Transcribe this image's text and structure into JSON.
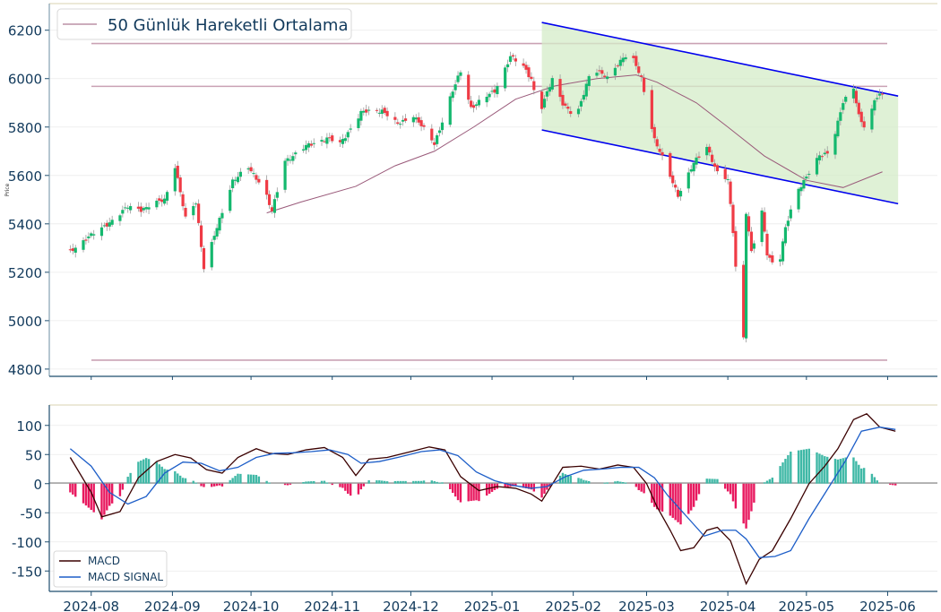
{
  "chart_data": [
    {
      "type": "candlestick",
      "panel": "price",
      "ylabel": "Price",
      "ylim": [
        4770,
        6310
      ],
      "yticks": [
        4800,
        5000,
        5200,
        5400,
        5600,
        5800,
        6000,
        6200
      ],
      "grid": true,
      "legend": {
        "position": "top-left",
        "entries": [
          "50 Günlük Hareketli Ortalama"
        ]
      },
      "colors": {
        "up": "#14b86e",
        "down": "#ef3b45",
        "ma": "#9a5a7a",
        "hline": "#caa2b4",
        "channel": "#0000ee",
        "channel_fill": "#d4ecc8"
      },
      "horizontal_lines": [
        6145,
        5968,
        4837
      ],
      "channel": {
        "upper": {
          "start": [
            "2025-01-20",
            6232
          ],
          "end": [
            "2025-06-05",
            5928
          ]
        },
        "lower": {
          "start": [
            "2025-01-20",
            5788
          ],
          "end": [
            "2025-06-05",
            5483
          ]
        }
      },
      "ma_anchors": [
        [
          "2024-10-07",
          5445
        ],
        [
          "2024-10-20",
          5490
        ],
        [
          "2024-11-10",
          5555
        ],
        [
          "2024-11-25",
          5640
        ],
        [
          "2024-12-10",
          5700
        ],
        [
          "2024-12-25",
          5800
        ],
        [
          "2025-01-10",
          5915
        ],
        [
          "2025-01-25",
          5970
        ],
        [
          "2025-02-10",
          6000
        ],
        [
          "2025-02-25",
          6015
        ],
        [
          "2025-03-05",
          5985
        ],
        [
          "2025-03-20",
          5900
        ],
        [
          "2025-04-01",
          5800
        ],
        [
          "2025-04-15",
          5680
        ],
        [
          "2025-05-01",
          5580
        ],
        [
          "2025-05-15",
          5550
        ],
        [
          "2025-05-30",
          5615
        ]
      ],
      "close_anchors": [
        [
          "2024-07-24",
          5285
        ],
        [
          "2024-07-30",
          5340
        ],
        [
          "2024-08-05",
          5380
        ],
        [
          "2024-08-15",
          5470
        ],
        [
          "2024-08-20",
          5460
        ],
        [
          "2024-08-29",
          5500
        ],
        [
          "2024-09-02",
          5640
        ],
        [
          "2024-09-06",
          5420
        ],
        [
          "2024-09-10",
          5490
        ],
        [
          "2024-09-13",
          5220
        ],
        [
          "2024-09-17",
          5350
        ],
        [
          "2024-09-24",
          5580
        ],
        [
          "2024-09-30",
          5630
        ],
        [
          "2024-10-06",
          5550
        ],
        [
          "2024-10-09",
          5450
        ],
        [
          "2024-10-14",
          5660
        ],
        [
          "2024-10-22",
          5720
        ],
        [
          "2024-10-30",
          5755
        ],
        [
          "2024-11-04",
          5730
        ],
        [
          "2024-11-12",
          5860
        ],
        [
          "2024-11-20",
          5870
        ],
        [
          "2024-11-26",
          5810
        ],
        [
          "2024-12-02",
          5850
        ],
        [
          "2024-12-10",
          5730
        ],
        [
          "2024-12-16",
          5920
        ],
        [
          "2024-12-20",
          6030
        ],
        [
          "2024-12-24",
          5880
        ],
        [
          "2025-01-02",
          5950
        ],
        [
          "2025-01-08",
          6090
        ],
        [
          "2025-01-13",
          6050
        ],
        [
          "2025-01-16",
          6000
        ],
        [
          "2025-01-19",
          5850
        ],
        [
          "2025-01-24",
          6000
        ],
        [
          "2025-01-28",
          5900
        ],
        [
          "2025-02-02",
          5830
        ],
        [
          "2025-02-08",
          6050
        ],
        [
          "2025-02-14",
          6000
        ],
        [
          "2025-02-20",
          6090
        ],
        [
          "2025-02-23",
          6100
        ],
        [
          "2025-02-27",
          6000
        ],
        [
          "2025-03-04",
          5750
        ],
        [
          "2025-03-09",
          5620
        ],
        [
          "2025-03-13",
          5520
        ],
        [
          "2025-03-19",
          5650
        ],
        [
          "2025-03-24",
          5720
        ],
        [
          "2025-03-28",
          5610
        ],
        [
          "2025-04-01",
          5580
        ],
        [
          "2025-04-03",
          5370
        ],
        [
          "2025-04-05",
          5080
        ],
        [
          "2025-04-07",
          4930
        ],
        [
          "2025-04-08",
          5450
        ],
        [
          "2025-04-10",
          5280
        ],
        [
          "2025-04-14",
          5450
        ],
        [
          "2025-04-16",
          5280
        ],
        [
          "2025-04-20",
          5200
        ],
        [
          "2025-04-23",
          5380
        ],
        [
          "2025-04-27",
          5530
        ],
        [
          "2025-05-02",
          5610
        ],
        [
          "2025-05-06",
          5680
        ],
        [
          "2025-05-10",
          5700
        ],
        [
          "2025-05-15",
          5900
        ],
        [
          "2025-05-19",
          5960
        ],
        [
          "2025-05-21",
          5850
        ],
        [
          "2025-05-24",
          5780
        ],
        [
          "2025-05-27",
          5910
        ],
        [
          "2025-05-31",
          5950
        ]
      ]
    },
    {
      "type": "bar+line",
      "panel": "macd",
      "ylim": [
        -185,
        135
      ],
      "yticks": [
        100,
        50,
        0,
        -50,
        -100,
        -150
      ],
      "xticks": [
        "2024-08",
        "2024-09",
        "2024-10",
        "2024-11",
        "2024-12",
        "2025-01",
        "2025-02",
        "2025-03",
        "2025-04",
        "2025-05",
        "2025-06"
      ],
      "grid": true,
      "legend": {
        "position": "bottom-left",
        "entries": [
          "MACD",
          "MACD SIGNAL"
        ]
      },
      "colors": {
        "macd": "#3a0000",
        "signal": "#1d5ec8",
        "hist_pos": "#3fb8a6",
        "hist_neg": "#e8195f"
      },
      "series": [
        {
          "name": "MACD",
          "anchors": [
            [
              "2024-07-24",
              45
            ],
            [
              "2024-08-01",
              -15
            ],
            [
              "2024-08-05",
              -57
            ],
            [
              "2024-08-12",
              -48
            ],
            [
              "2024-08-19",
              10
            ],
            [
              "2024-08-26",
              38
            ],
            [
              "2024-09-02",
              50
            ],
            [
              "2024-09-08",
              44
            ],
            [
              "2024-09-14",
              24
            ],
            [
              "2024-09-20",
              18
            ],
            [
              "2024-09-26",
              45
            ],
            [
              "2024-10-03",
              60
            ],
            [
              "2024-10-08",
              52
            ],
            [
              "2024-10-15",
              50
            ],
            [
              "2024-10-22",
              58
            ],
            [
              "2024-10-29",
              62
            ],
            [
              "2024-11-05",
              45
            ],
            [
              "2024-11-10",
              14
            ],
            [
              "2024-11-15",
              42
            ],
            [
              "2024-11-22",
              45
            ],
            [
              "2024-12-01",
              55
            ],
            [
              "2024-12-08",
              63
            ],
            [
              "2024-12-14",
              58
            ],
            [
              "2024-12-20",
              12
            ],
            [
              "2024-12-27",
              -12
            ],
            [
              "2025-01-03",
              -5
            ],
            [
              "2025-01-10",
              -8
            ],
            [
              "2025-01-16",
              -18
            ],
            [
              "2025-01-20",
              -30
            ],
            [
              "2025-01-28",
              28
            ],
            [
              "2025-02-04",
              30
            ],
            [
              "2025-02-11",
              25
            ],
            [
              "2025-02-18",
              32
            ],
            [
              "2025-02-24",
              28
            ],
            [
              "2025-03-01",
              0
            ],
            [
              "2025-03-05",
              -40
            ],
            [
              "2025-03-10",
              -80
            ],
            [
              "2025-03-14",
              -115
            ],
            [
              "2025-03-19",
              -110
            ],
            [
              "2025-03-24",
              -80
            ],
            [
              "2025-03-28",
              -75
            ],
            [
              "2025-04-02",
              -98
            ],
            [
              "2025-04-08",
              -172
            ],
            [
              "2025-04-13",
              -130
            ],
            [
              "2025-04-18",
              -115
            ],
            [
              "2025-04-25",
              -60
            ],
            [
              "2025-05-02",
              0
            ],
            [
              "2025-05-08",
              30
            ],
            [
              "2025-05-13",
              60
            ],
            [
              "2025-05-19",
              110
            ],
            [
              "2025-05-24",
              120
            ],
            [
              "2025-05-29",
              97
            ],
            [
              "2025-06-04",
              90
            ]
          ]
        },
        {
          "name": "MACD SIGNAL",
          "anchors": [
            [
              "2024-07-24",
              60
            ],
            [
              "2024-08-01",
              30
            ],
            [
              "2024-08-08",
              -15
            ],
            [
              "2024-08-15",
              -35
            ],
            [
              "2024-08-22",
              -22
            ],
            [
              "2024-08-29",
              18
            ],
            [
              "2024-09-05",
              37
            ],
            [
              "2024-09-12",
              35
            ],
            [
              "2024-09-19",
              22
            ],
            [
              "2024-09-26",
              28
            ],
            [
              "2024-10-03",
              45
            ],
            [
              "2024-10-10",
              52
            ],
            [
              "2024-10-17",
              53
            ],
            [
              "2024-10-24",
              55
            ],
            [
              "2024-10-31",
              58
            ],
            [
              "2024-11-07",
              50
            ],
            [
              "2024-11-12",
              35
            ],
            [
              "2024-11-19",
              38
            ],
            [
              "2024-11-26",
              45
            ],
            [
              "2024-12-05",
              55
            ],
            [
              "2024-12-12",
              58
            ],
            [
              "2024-12-19",
              48
            ],
            [
              "2024-12-26",
              20
            ],
            [
              "2025-01-02",
              5
            ],
            [
              "2025-01-09",
              -3
            ],
            [
              "2025-01-16",
              -8
            ],
            [
              "2025-01-22",
              -5
            ],
            [
              "2025-01-29",
              12
            ],
            [
              "2025-02-05",
              23
            ],
            [
              "2025-02-12",
              25
            ],
            [
              "2025-02-19",
              28
            ],
            [
              "2025-02-26",
              28
            ],
            [
              "2025-03-04",
              10
            ],
            [
              "2025-03-09",
              -20
            ],
            [
              "2025-03-16",
              -55
            ],
            [
              "2025-03-23",
              -90
            ],
            [
              "2025-03-30",
              -80
            ],
            [
              "2025-04-04",
              -80
            ],
            [
              "2025-04-08",
              -95
            ],
            [
              "2025-04-13",
              -127
            ],
            [
              "2025-04-19",
              -125
            ],
            [
              "2025-04-25",
              -115
            ],
            [
              "2025-05-02",
              -60
            ],
            [
              "2025-05-09",
              -10
            ],
            [
              "2025-05-16",
              40
            ],
            [
              "2025-05-22",
              90
            ],
            [
              "2025-05-29",
              97
            ],
            [
              "2025-06-04",
              93
            ]
          ]
        }
      ]
    }
  ]
}
